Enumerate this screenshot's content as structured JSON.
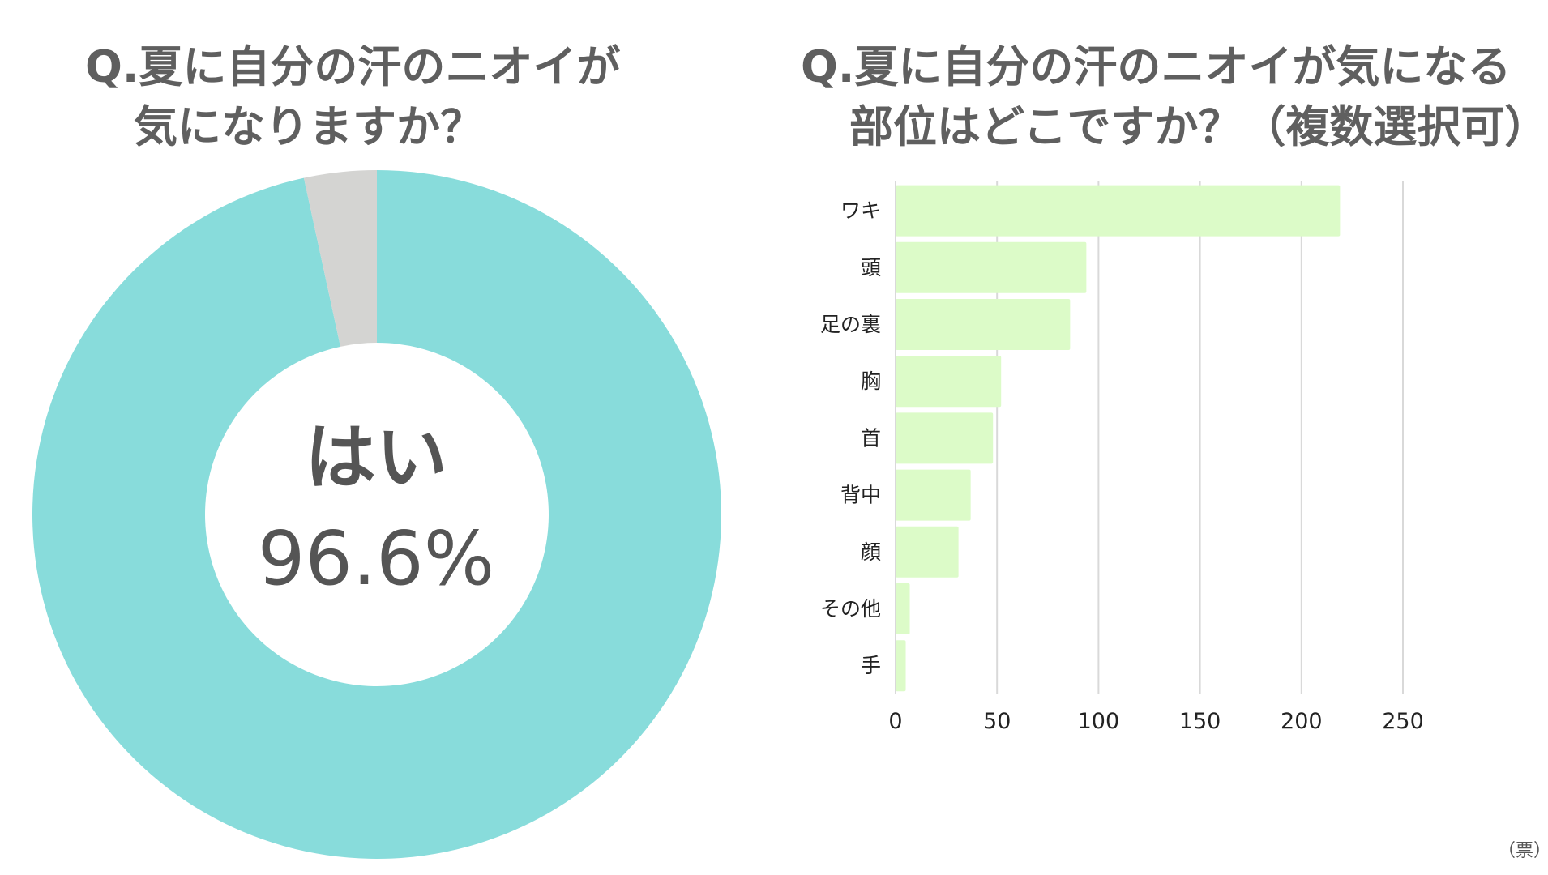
{
  "left_title": {
    "line1": "Q.夏に自分の汗のニオイが",
    "line2": "気になりますか？"
  },
  "right_title": {
    "line1": "Q.夏に自分の汗のニオイが気になる",
    "line2": "部位はどこですか？（複数選択可）"
  },
  "colors": {
    "yes": "#88dcdb",
    "other": "#d4d4d2",
    "bar": "#dcfbc8",
    "grid": "#d9d9d9"
  },
  "chart_data": [
    {
      "type": "pie",
      "donut": true,
      "labels": [
        "はい",
        ""
      ],
      "values": [
        96.6,
        3.4
      ],
      "center_label": "はい",
      "center_value": "96.6%"
    },
    {
      "type": "bar",
      "orientation": "horizontal",
      "categories": [
        "ワキ",
        "頭",
        "足の裏",
        "胸",
        "首",
        "背中",
        "顔",
        "その他",
        "手"
      ],
      "values": [
        219,
        94,
        86,
        52,
        48,
        37,
        31,
        7,
        5
      ],
      "xlim": [
        0,
        250
      ],
      "xticks": [
        "0",
        "50",
        "100",
        "150",
        "200",
        "250"
      ],
      "unit": "（票）",
      "grid": true
    }
  ]
}
